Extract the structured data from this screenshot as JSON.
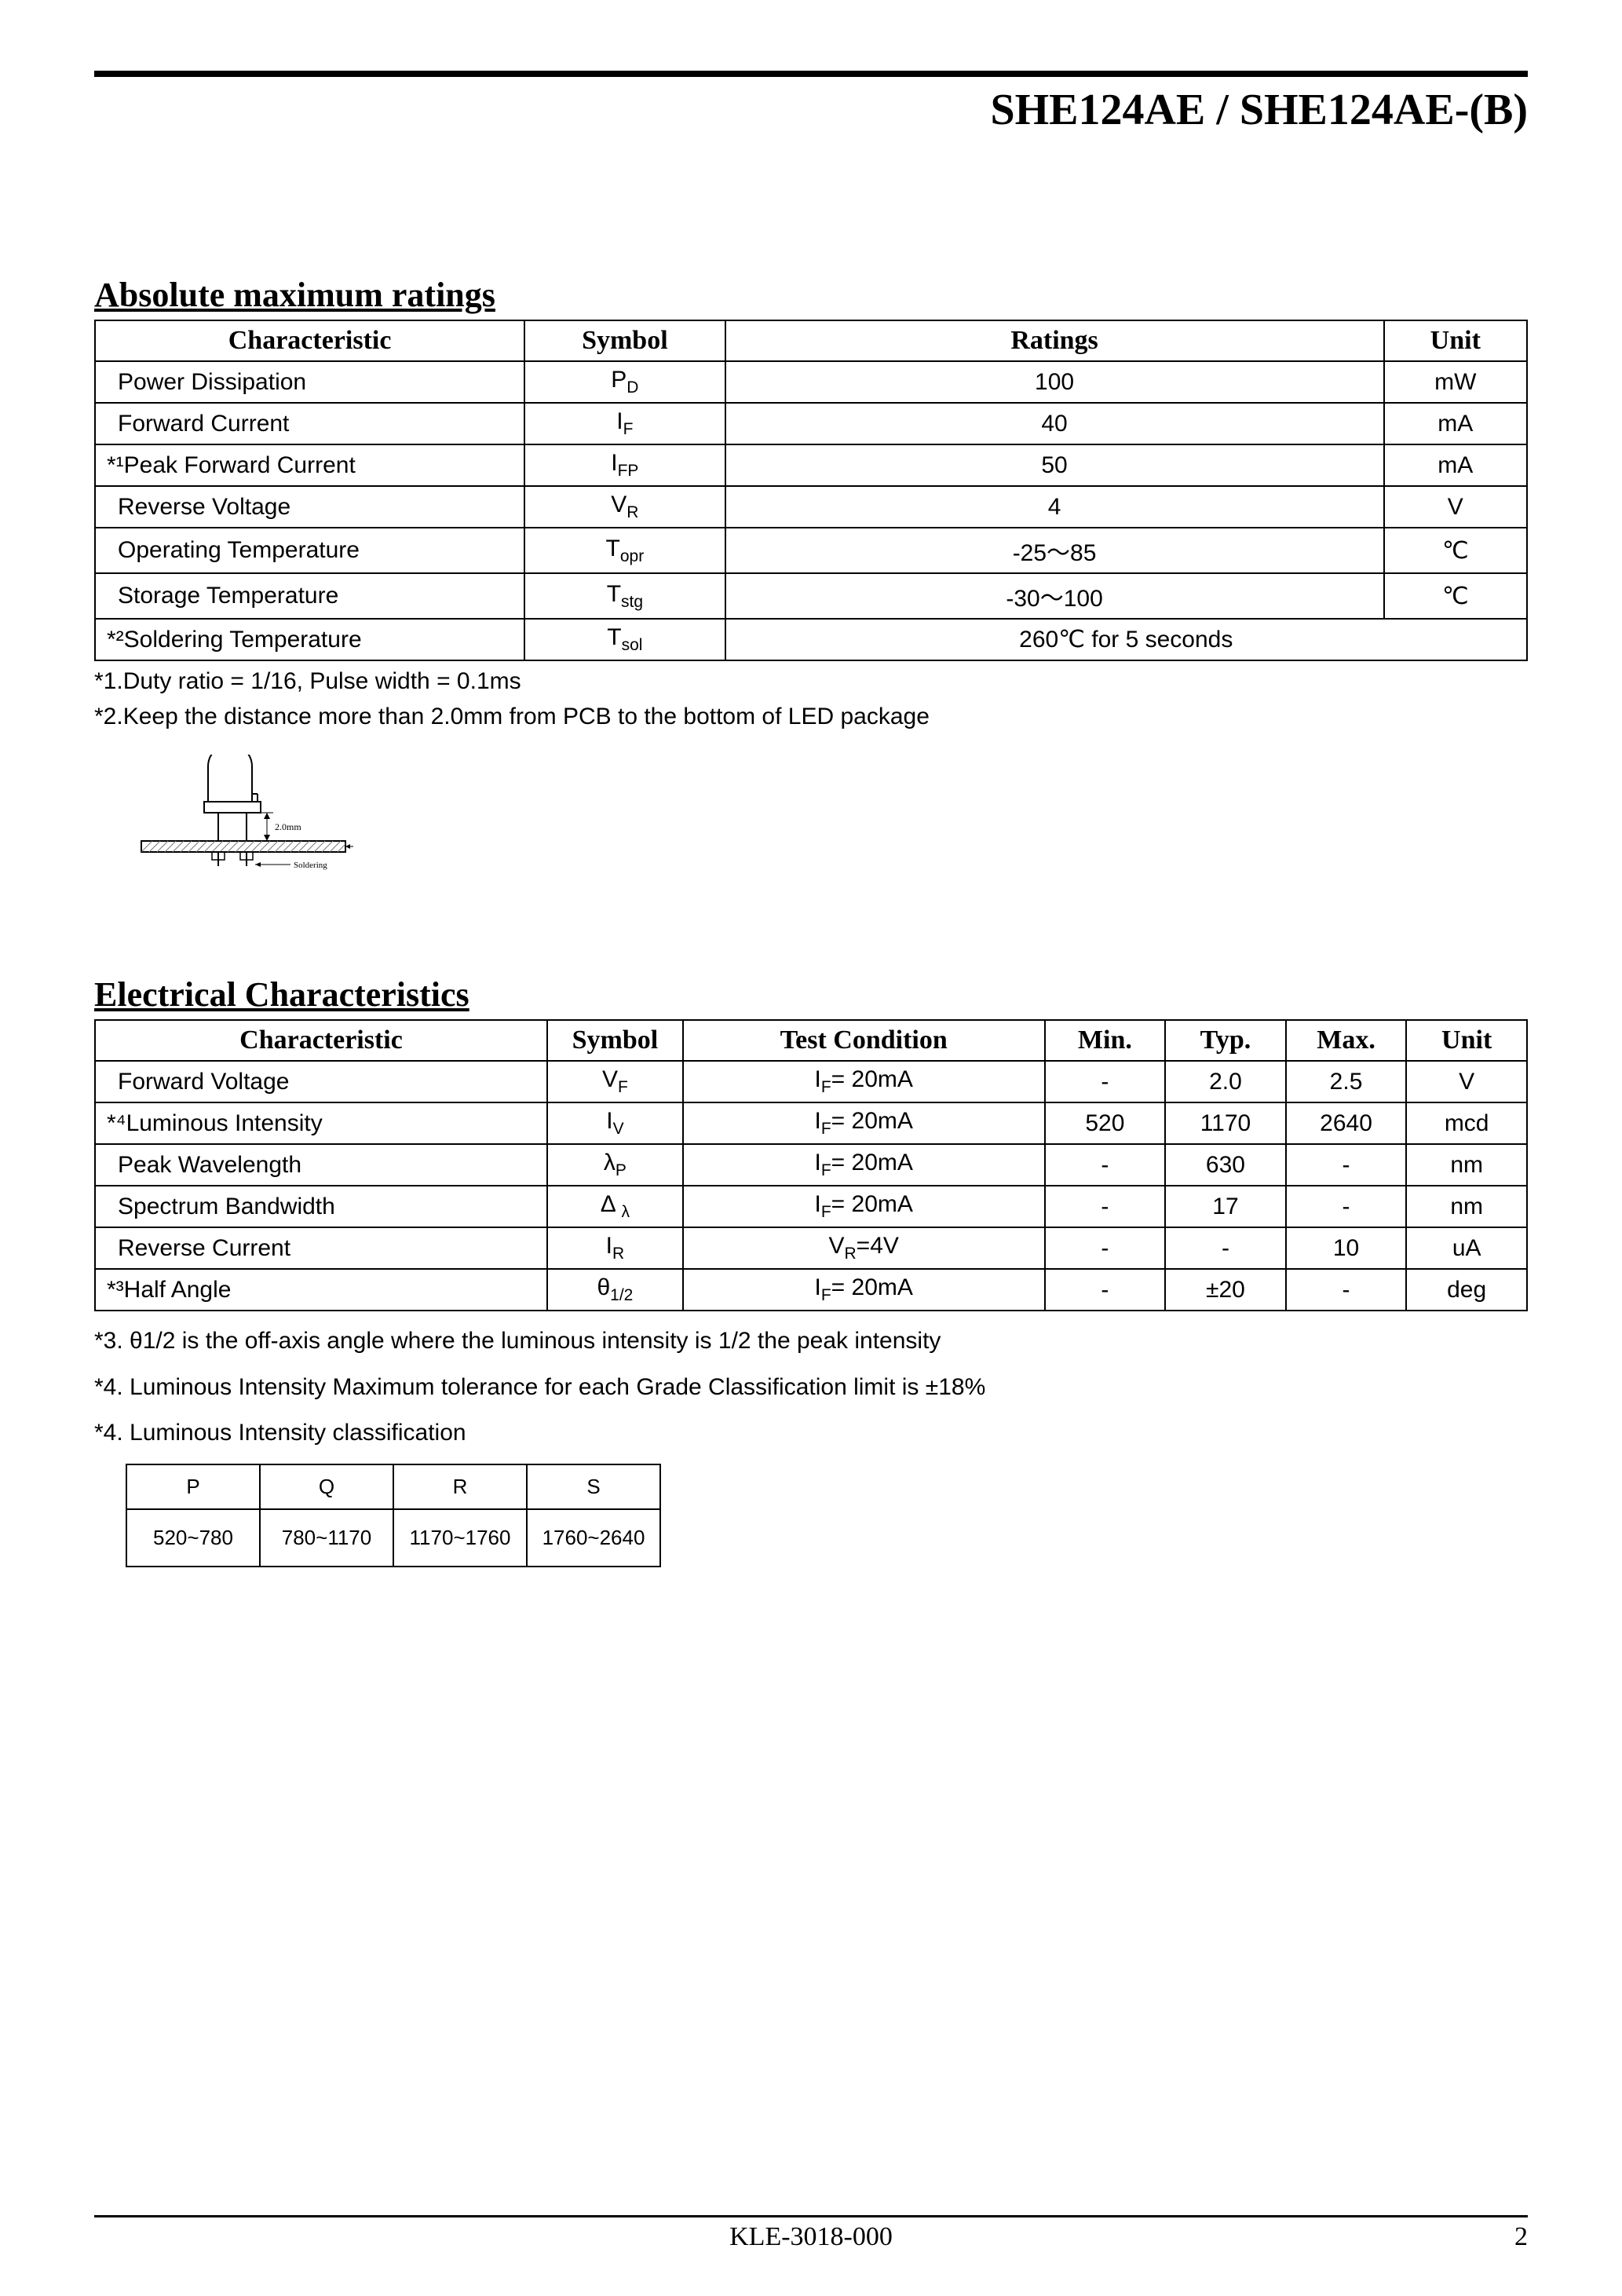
{
  "header_title": "SHE124AE / SHE124AE-(B)",
  "section1_title": "Absolute maximum ratings",
  "section2_title": "Electrical Characteristics",
  "table1": {
    "headers": [
      "Characteristic",
      "Symbol",
      "Ratings",
      "Unit"
    ],
    "col_widths_pct": [
      30,
      14,
      46,
      10
    ],
    "rows": [
      {
        "char": "Power Dissipation",
        "sym": "P",
        "sub": "D",
        "ratings": "100",
        "unit": "mW",
        "colspan": false
      },
      {
        "char": "Forward Current",
        "sym": "I",
        "sub": "F",
        "ratings": "40",
        "unit": "mA",
        "colspan": false
      },
      {
        "char": "*¹Peak Forward Current",
        "sym": "I",
        "sub": "FP",
        "ratings": "50",
        "unit": "mA",
        "colspan": false,
        "no_indent": true
      },
      {
        "char": "Reverse Voltage",
        "sym": "V",
        "sub": "R",
        "ratings": "4",
        "unit": "V",
        "colspan": false
      },
      {
        "char": "Operating Temperature",
        "sym": "T",
        "sub": "opr",
        "ratings": "-25～85",
        "unit": "℃",
        "colspan": false
      },
      {
        "char": "Storage Temperature",
        "sym": "T",
        "sub": "stg",
        "ratings": "-30～100",
        "unit": "℃",
        "colspan": false
      },
      {
        "char": "*²Soldering Temperature",
        "sym": "T",
        "sub": "sol",
        "ratings": "260℃ for 5 seconds",
        "unit": "",
        "colspan": true,
        "no_indent": true
      }
    ]
  },
  "footnotes1": [
    "*1.Duty ratio = 1/16, Pulse width = 0.1ms",
    "*2.Keep the distance more than 2.0mm from PCB to the bottom of LED package"
  ],
  "led_diagram": {
    "pcb_label": "PCB",
    "dist_label": "2.0mm",
    "solder_label": "Soldering",
    "stroke": "#000000",
    "hatch_stroke": "#888888"
  },
  "table2": {
    "headers": [
      "Characteristic",
      "Symbol",
      "Test Condition",
      "Min.",
      "Typ.",
      "Max.",
      "Unit"
    ],
    "col_widths_pct": [
      30,
      9,
      24,
      8,
      8,
      8,
      8
    ],
    "rows": [
      {
        "char": "Forward Voltage",
        "sym": "V",
        "sub": "F",
        "tc": "I_F= 20mA",
        "min": "-",
        "typ": "2.0",
        "max": "2.5",
        "unit": "V"
      },
      {
        "char": "*⁴Luminous Intensity",
        "sym": "I",
        "sub": "V",
        "tc": "I_F= 20mA",
        "min": "520",
        "typ": "1170",
        "max": "2640",
        "unit": "mcd",
        "no_indent": true
      },
      {
        "char": "Peak Wavelength",
        "sym": "λ",
        "sub": "P",
        "tc": "I_F= 20mA",
        "min": "-",
        "typ": "630",
        "max": "-",
        "unit": "nm"
      },
      {
        "char": "Spectrum Bandwidth",
        "sym": "Δ",
        "sub": "λ",
        "tc": "I_F= 20mA",
        "min": "-",
        "typ": "17",
        "max": "-",
        "unit": "nm",
        "sub_space": true
      },
      {
        "char": "Reverse Current",
        "sym": "I",
        "sub": "R",
        "tc": "V_R=4V",
        "min": "-",
        "typ": "-",
        "max": "10",
        "unit": "uA"
      },
      {
        "char": "*³Half Angle",
        "sym": "θ",
        "sub": "1/2",
        "tc": "I_F= 20mA",
        "min": "-",
        "typ": "±20",
        "max": "-",
        "unit": "deg",
        "no_indent": true
      }
    ]
  },
  "footnotes2": [
    "*3. θ1/2 is the off-axis angle where the luminous intensity is 1/2 the peak intensity",
    "*4. Luminous Intensity Maximum tolerance for each Grade Classification limit is ±18%",
    "*4. Luminous Intensity classification"
  ],
  "class_table": {
    "headers": [
      "P",
      "Q",
      "R",
      "S"
    ],
    "values": [
      "520~780",
      "780~1170",
      "1170~1760",
      "1760~2640"
    ]
  },
  "footer_center": "KLE-3018-000",
  "footer_page": "2"
}
